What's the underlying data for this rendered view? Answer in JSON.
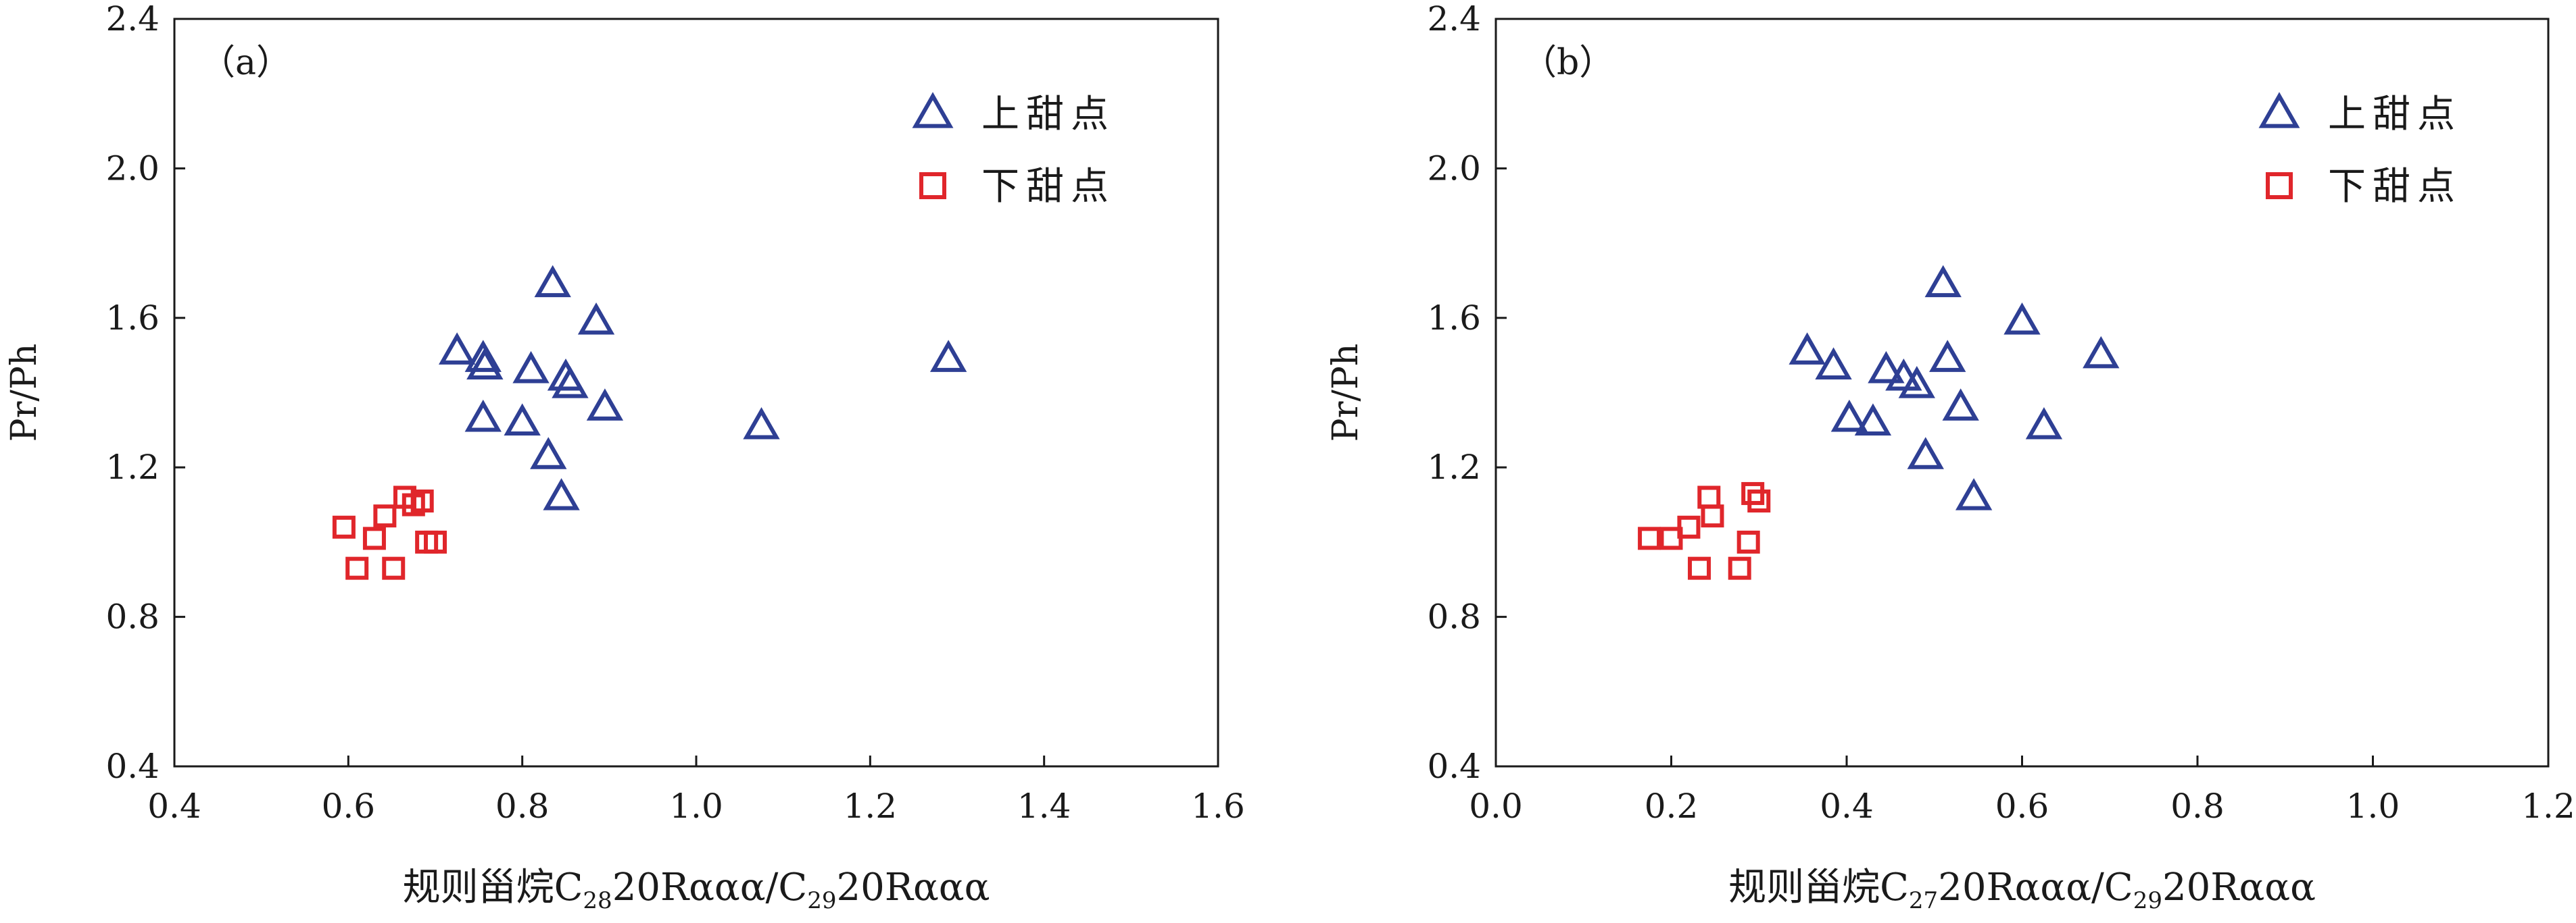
{
  "figure": {
    "colors": {
      "upper_sweet_spot": "#2e3f94",
      "lower_sweet_spot": "#e0262b",
      "axis": "#1a1a1a"
    },
    "icons": {
      "upper_sweet_spot": "triangle-open-icon",
      "lower_sweet_spot": "square-open-icon"
    }
  },
  "chart_data": [
    {
      "panel_label": "（a）",
      "type": "scatter",
      "title": "",
      "xlabel": {
        "prefix": "规则甾烷C",
        "sub1": "28",
        "mid": "20Rααα/C",
        "sub2": "29",
        "suffix": "20Rααα"
      },
      "ylabel": "Pr/Ph",
      "xlim": [
        0.4,
        1.6
      ],
      "ylim": [
        0.4,
        2.4
      ],
      "xticks": [
        "0.4",
        "0.6",
        "0.8",
        "1.0",
        "1.2",
        "1.4",
        "1.6"
      ],
      "yticks": [
        "0.4",
        "0.8",
        "1.2",
        "1.6",
        "2.0",
        "2.4"
      ],
      "grid": false,
      "legend_position": "top-right",
      "series": [
        {
          "name": "上甜点",
          "marker": "triangle",
          "points": [
            [
              0.725,
              1.51
            ],
            [
              0.755,
              1.49
            ],
            [
              0.757,
              1.47
            ],
            [
              0.755,
              1.33
            ],
            [
              0.8,
              1.32
            ],
            [
              0.81,
              1.46
            ],
            [
              0.83,
              1.23
            ],
            [
              0.835,
              1.69
            ],
            [
              0.845,
              1.12
            ],
            [
              0.85,
              1.44
            ],
            [
              0.855,
              1.42
            ],
            [
              0.885,
              1.59
            ],
            [
              0.895,
              1.36
            ],
            [
              1.075,
              1.31
            ],
            [
              1.29,
              1.49
            ]
          ]
        },
        {
          "name": "下甜点",
          "marker": "square",
          "points": [
            [
              0.595,
              1.04
            ],
            [
              0.61,
              0.93
            ],
            [
              0.63,
              1.01
            ],
            [
              0.642,
              1.07
            ],
            [
              0.652,
              0.93
            ],
            [
              0.665,
              1.12
            ],
            [
              0.675,
              1.1
            ],
            [
              0.685,
              1.11
            ],
            [
              0.69,
              1.0
            ],
            [
              0.7,
              1.0
            ]
          ]
        }
      ]
    },
    {
      "panel_label": "（b）",
      "type": "scatter",
      "title": "",
      "xlabel": {
        "prefix": "规则甾烷C",
        "sub1": "27",
        "mid": "20Rααα/C",
        "sub2": "29",
        "suffix": "20Rααα"
      },
      "ylabel": "Pr/Ph",
      "xlim": [
        0.0,
        1.2
      ],
      "ylim": [
        0.4,
        2.4
      ],
      "xticks": [
        "0.0",
        "0.2",
        "0.4",
        "0.6",
        "0.8",
        "1.0",
        "1.2"
      ],
      "yticks": [
        "0.4",
        "0.8",
        "1.2",
        "1.6",
        "2.0",
        "2.4"
      ],
      "grid": false,
      "legend_position": "top-right",
      "series": [
        {
          "name": "上甜点",
          "marker": "triangle",
          "points": [
            [
              0.355,
              1.51
            ],
            [
              0.385,
              1.47
            ],
            [
              0.403,
              1.33
            ],
            [
              0.43,
              1.32
            ],
            [
              0.445,
              1.46
            ],
            [
              0.465,
              1.44
            ],
            [
              0.48,
              1.42
            ],
            [
              0.49,
              1.23
            ],
            [
              0.51,
              1.69
            ],
            [
              0.515,
              1.49
            ],
            [
              0.53,
              1.36
            ],
            [
              0.545,
              1.12
            ],
            [
              0.6,
              1.59
            ],
            [
              0.625,
              1.31
            ],
            [
              0.69,
              1.5
            ]
          ]
        },
        {
          "name": "下甜点",
          "marker": "square",
          "points": [
            [
              0.175,
              1.01
            ],
            [
              0.2,
              1.01
            ],
            [
              0.22,
              1.04
            ],
            [
              0.232,
              0.93
            ],
            [
              0.243,
              1.12
            ],
            [
              0.247,
              1.07
            ],
            [
              0.278,
              0.93
            ],
            [
              0.288,
              1.0
            ],
            [
              0.293,
              1.13
            ],
            [
              0.3,
              1.11
            ]
          ]
        }
      ]
    }
  ]
}
